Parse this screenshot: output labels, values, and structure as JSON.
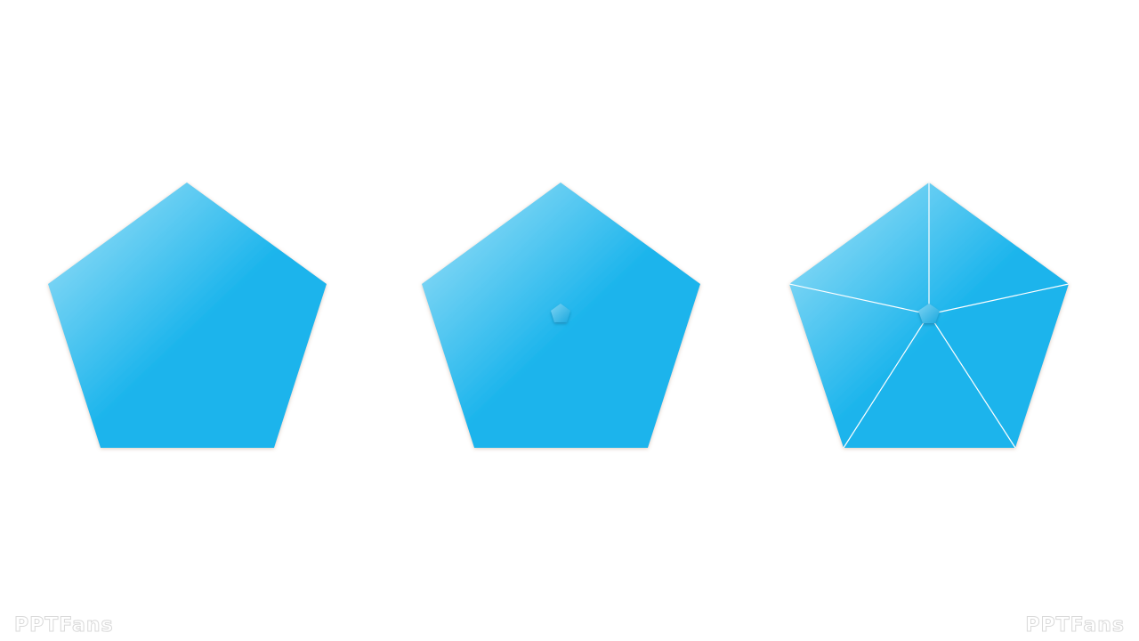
{
  "watermarks": {
    "left": "PPTFans",
    "right": "PPTFans"
  }
}
